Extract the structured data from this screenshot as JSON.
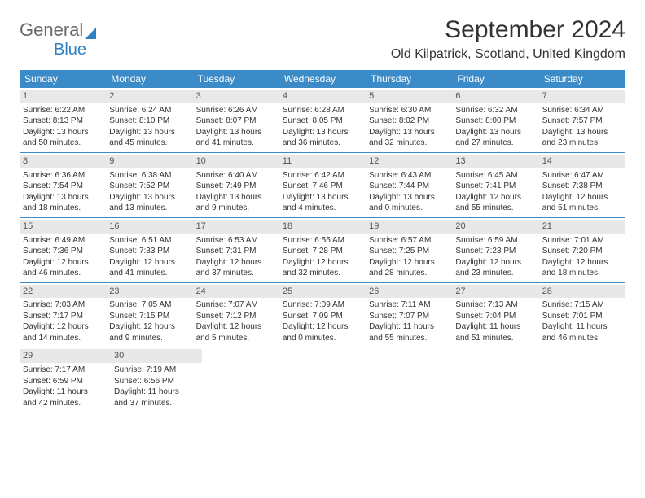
{
  "logo": {
    "text1": "General",
    "text2": "Blue"
  },
  "title": "September 2024",
  "location": "Old Kilpatrick, Scotland, United Kingdom",
  "colors": {
    "header_bg": "#3b8bc8",
    "header_text": "#ffffff",
    "daynum_bg": "#e8e8e8",
    "border": "#3b8bc8",
    "text": "#333333",
    "logo_gray": "#6a6a6a",
    "logo_blue": "#2f7fc2"
  },
  "dow": [
    "Sunday",
    "Monday",
    "Tuesday",
    "Wednesday",
    "Thursday",
    "Friday",
    "Saturday"
  ],
  "weeks": [
    [
      {
        "n": "1",
        "sr": "Sunrise: 6:22 AM",
        "ss": "Sunset: 8:13 PM",
        "d1": "Daylight: 13 hours",
        "d2": "and 50 minutes."
      },
      {
        "n": "2",
        "sr": "Sunrise: 6:24 AM",
        "ss": "Sunset: 8:10 PM",
        "d1": "Daylight: 13 hours",
        "d2": "and 45 minutes."
      },
      {
        "n": "3",
        "sr": "Sunrise: 6:26 AM",
        "ss": "Sunset: 8:07 PM",
        "d1": "Daylight: 13 hours",
        "d2": "and 41 minutes."
      },
      {
        "n": "4",
        "sr": "Sunrise: 6:28 AM",
        "ss": "Sunset: 8:05 PM",
        "d1": "Daylight: 13 hours",
        "d2": "and 36 minutes."
      },
      {
        "n": "5",
        "sr": "Sunrise: 6:30 AM",
        "ss": "Sunset: 8:02 PM",
        "d1": "Daylight: 13 hours",
        "d2": "and 32 minutes."
      },
      {
        "n": "6",
        "sr": "Sunrise: 6:32 AM",
        "ss": "Sunset: 8:00 PM",
        "d1": "Daylight: 13 hours",
        "d2": "and 27 minutes."
      },
      {
        "n": "7",
        "sr": "Sunrise: 6:34 AM",
        "ss": "Sunset: 7:57 PM",
        "d1": "Daylight: 13 hours",
        "d2": "and 23 minutes."
      }
    ],
    [
      {
        "n": "8",
        "sr": "Sunrise: 6:36 AM",
        "ss": "Sunset: 7:54 PM",
        "d1": "Daylight: 13 hours",
        "d2": "and 18 minutes."
      },
      {
        "n": "9",
        "sr": "Sunrise: 6:38 AM",
        "ss": "Sunset: 7:52 PM",
        "d1": "Daylight: 13 hours",
        "d2": "and 13 minutes."
      },
      {
        "n": "10",
        "sr": "Sunrise: 6:40 AM",
        "ss": "Sunset: 7:49 PM",
        "d1": "Daylight: 13 hours",
        "d2": "and 9 minutes."
      },
      {
        "n": "11",
        "sr": "Sunrise: 6:42 AM",
        "ss": "Sunset: 7:46 PM",
        "d1": "Daylight: 13 hours",
        "d2": "and 4 minutes."
      },
      {
        "n": "12",
        "sr": "Sunrise: 6:43 AM",
        "ss": "Sunset: 7:44 PM",
        "d1": "Daylight: 13 hours",
        "d2": "and 0 minutes."
      },
      {
        "n": "13",
        "sr": "Sunrise: 6:45 AM",
        "ss": "Sunset: 7:41 PM",
        "d1": "Daylight: 12 hours",
        "d2": "and 55 minutes."
      },
      {
        "n": "14",
        "sr": "Sunrise: 6:47 AM",
        "ss": "Sunset: 7:38 PM",
        "d1": "Daylight: 12 hours",
        "d2": "and 51 minutes."
      }
    ],
    [
      {
        "n": "15",
        "sr": "Sunrise: 6:49 AM",
        "ss": "Sunset: 7:36 PM",
        "d1": "Daylight: 12 hours",
        "d2": "and 46 minutes."
      },
      {
        "n": "16",
        "sr": "Sunrise: 6:51 AM",
        "ss": "Sunset: 7:33 PM",
        "d1": "Daylight: 12 hours",
        "d2": "and 41 minutes."
      },
      {
        "n": "17",
        "sr": "Sunrise: 6:53 AM",
        "ss": "Sunset: 7:31 PM",
        "d1": "Daylight: 12 hours",
        "d2": "and 37 minutes."
      },
      {
        "n": "18",
        "sr": "Sunrise: 6:55 AM",
        "ss": "Sunset: 7:28 PM",
        "d1": "Daylight: 12 hours",
        "d2": "and 32 minutes."
      },
      {
        "n": "19",
        "sr": "Sunrise: 6:57 AM",
        "ss": "Sunset: 7:25 PM",
        "d1": "Daylight: 12 hours",
        "d2": "and 28 minutes."
      },
      {
        "n": "20",
        "sr": "Sunrise: 6:59 AM",
        "ss": "Sunset: 7:23 PM",
        "d1": "Daylight: 12 hours",
        "d2": "and 23 minutes."
      },
      {
        "n": "21",
        "sr": "Sunrise: 7:01 AM",
        "ss": "Sunset: 7:20 PM",
        "d1": "Daylight: 12 hours",
        "d2": "and 18 minutes."
      }
    ],
    [
      {
        "n": "22",
        "sr": "Sunrise: 7:03 AM",
        "ss": "Sunset: 7:17 PM",
        "d1": "Daylight: 12 hours",
        "d2": "and 14 minutes."
      },
      {
        "n": "23",
        "sr": "Sunrise: 7:05 AM",
        "ss": "Sunset: 7:15 PM",
        "d1": "Daylight: 12 hours",
        "d2": "and 9 minutes."
      },
      {
        "n": "24",
        "sr": "Sunrise: 7:07 AM",
        "ss": "Sunset: 7:12 PM",
        "d1": "Daylight: 12 hours",
        "d2": "and 5 minutes."
      },
      {
        "n": "25",
        "sr": "Sunrise: 7:09 AM",
        "ss": "Sunset: 7:09 PM",
        "d1": "Daylight: 12 hours",
        "d2": "and 0 minutes."
      },
      {
        "n": "26",
        "sr": "Sunrise: 7:11 AM",
        "ss": "Sunset: 7:07 PM",
        "d1": "Daylight: 11 hours",
        "d2": "and 55 minutes."
      },
      {
        "n": "27",
        "sr": "Sunrise: 7:13 AM",
        "ss": "Sunset: 7:04 PM",
        "d1": "Daylight: 11 hours",
        "d2": "and 51 minutes."
      },
      {
        "n": "28",
        "sr": "Sunrise: 7:15 AM",
        "ss": "Sunset: 7:01 PM",
        "d1": "Daylight: 11 hours",
        "d2": "and 46 minutes."
      }
    ],
    [
      {
        "n": "29",
        "sr": "Sunrise: 7:17 AM",
        "ss": "Sunset: 6:59 PM",
        "d1": "Daylight: 11 hours",
        "d2": "and 42 minutes."
      },
      {
        "n": "30",
        "sr": "Sunrise: 7:19 AM",
        "ss": "Sunset: 6:56 PM",
        "d1": "Daylight: 11 hours",
        "d2": "and 37 minutes."
      },
      null,
      null,
      null,
      null,
      null
    ]
  ]
}
